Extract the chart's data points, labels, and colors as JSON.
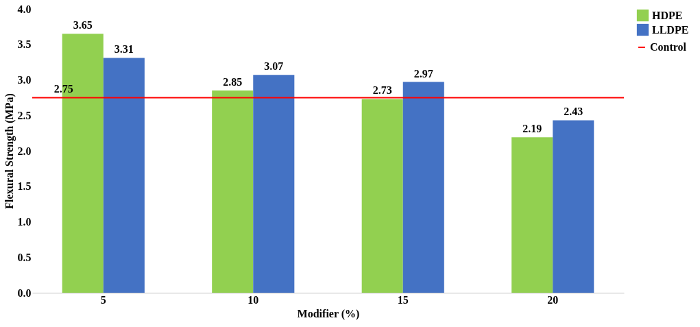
{
  "chart_data": {
    "type": "bar",
    "xlabel": "Modifier (%)",
    "ylabel": "Flexural Strength (MPa)",
    "categories": [
      "5",
      "10",
      "15",
      "20"
    ],
    "series": [
      {
        "name": "HDPE",
        "color": "#92d050",
        "values": [
          3.65,
          2.85,
          2.73,
          2.19
        ]
      },
      {
        "name": "LLDPE",
        "color": "#4472c4",
        "values": [
          3.31,
          3.07,
          2.97,
          2.43
        ]
      }
    ],
    "ylim": [
      0,
      4
    ],
    "yticks": [
      {
        "value": 0,
        "label": "0.0"
      },
      0.5,
      {
        "value": 1,
        "label": "1.0"
      },
      1.5,
      {
        "value": 2,
        "label": "2.0"
      },
      2.5,
      {
        "value": 3,
        "label": "3.0"
      },
      3.5,
      {
        "value": 4,
        "label": "4.0"
      }
    ],
    "ref_lines": [
      {
        "axis": "y",
        "value": 2.75,
        "label": "Control",
        "color": "#ff0000"
      }
    ],
    "annotations": [
      {
        "text": "2.75",
        "x": "5",
        "y": 2.75
      }
    ],
    "data_labels": true,
    "grid": false,
    "legend": "right"
  }
}
